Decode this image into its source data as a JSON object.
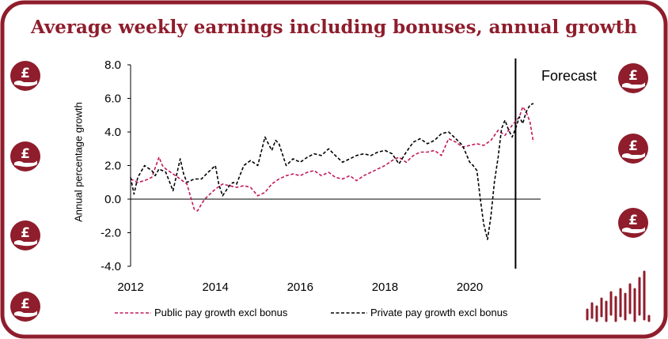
{
  "colors": {
    "accent": "#8f1d2c",
    "public_series": "#c2185b",
    "private_series": "#000000"
  },
  "title": "Average weekly earnings including bonuses, annual growth",
  "annotation": "Forecast",
  "icons": [
    "pound-hand-icon",
    "bars-logo-icon"
  ],
  "chart_data": {
    "type": "line",
    "title": "Average weekly earnings including bonuses, annual growth",
    "xlabel": "",
    "ylabel": "Annual percentage growth",
    "xlim": [
      2012,
      2021.67
    ],
    "ylim": [
      -4.0,
      8.0
    ],
    "x_ticks": [
      "2012",
      "2014",
      "2016",
      "2018",
      "2020"
    ],
    "y_ticks": [
      "8.0",
      "6.0",
      "4.0",
      "2.0",
      "0.0",
      "-2.0",
      "-4.0"
    ],
    "grid": false,
    "legend_position": "bottom",
    "forecast_start": 2021.08,
    "series": [
      {
        "name": "Public pay growth excl bonus",
        "x": [
          2012.0,
          2012.17,
          2012.33,
          2012.5,
          2012.67,
          2012.75,
          2012.83,
          2013.0,
          2013.17,
          2013.33,
          2013.5,
          2013.58,
          2013.67,
          2013.75,
          2013.83,
          2014.0,
          2014.17,
          2014.33,
          2014.5,
          2014.67,
          2014.83,
          2015.0,
          2015.17,
          2015.33,
          2015.5,
          2015.67,
          2015.83,
          2016.0,
          2016.17,
          2016.33,
          2016.5,
          2016.67,
          2016.83,
          2017.0,
          2017.17,
          2017.33,
          2017.5,
          2017.67,
          2017.83,
          2018.0,
          2018.17,
          2018.33,
          2018.5,
          2018.67,
          2018.83,
          2019.0,
          2019.17,
          2019.33,
          2019.5,
          2019.67,
          2019.83,
          2020.0,
          2020.17,
          2020.33,
          2020.5,
          2020.67,
          2020.83,
          2021.0,
          2021.17,
          2021.25,
          2021.33,
          2021.42,
          2021.5
        ],
        "y": [
          1.2,
          1.0,
          1.1,
          1.3,
          2.5,
          2.0,
          1.8,
          1.5,
          1.2,
          0.9,
          -0.6,
          -0.7,
          -0.3,
          0.0,
          0.2,
          0.6,
          0.9,
          0.8,
          0.7,
          0.8,
          0.7,
          0.2,
          0.4,
          0.9,
          1.2,
          1.4,
          1.5,
          1.4,
          1.6,
          1.7,
          1.4,
          1.6,
          1.3,
          1.2,
          1.4,
          1.1,
          1.4,
          1.6,
          1.8,
          2.0,
          2.3,
          2.5,
          2.2,
          2.6,
          2.8,
          2.8,
          2.9,
          2.6,
          3.6,
          3.4,
          3.1,
          3.2,
          3.3,
          3.2,
          3.5,
          4.1,
          3.8,
          4.4,
          4.9,
          5.5,
          5.2,
          4.6,
          3.4
        ]
      },
      {
        "name": "Private pay growth excl bonus",
        "x": [
          2012.0,
          2012.08,
          2012.17,
          2012.33,
          2012.5,
          2012.58,
          2012.67,
          2012.83,
          2013.0,
          2013.17,
          2013.25,
          2013.33,
          2013.5,
          2013.67,
          2013.83,
          2014.0,
          2014.08,
          2014.17,
          2014.33,
          2014.42,
          2014.5,
          2014.67,
          2014.83,
          2015.0,
          2015.17,
          2015.33,
          2015.42,
          2015.5,
          2015.67,
          2015.83,
          2016.0,
          2016.17,
          2016.33,
          2016.5,
          2016.67,
          2016.83,
          2017.0,
          2017.17,
          2017.33,
          2017.5,
          2017.67,
          2017.83,
          2018.0,
          2018.17,
          2018.33,
          2018.5,
          2018.67,
          2018.83,
          2019.0,
          2019.17,
          2019.33,
          2019.5,
          2019.67,
          2019.83,
          2020.0,
          2020.08,
          2020.17,
          2020.25,
          2020.33,
          2020.42,
          2020.5,
          2020.58,
          2020.67,
          2020.75,
          2020.83,
          2020.92,
          2021.0,
          2021.08,
          2021.17,
          2021.25,
          2021.33,
          2021.42,
          2021.5
        ],
        "y": [
          1.3,
          0.3,
          1.3,
          2.0,
          1.7,
          1.4,
          1.8,
          1.6,
          0.5,
          2.4,
          1.5,
          1.0,
          1.2,
          1.2,
          1.6,
          2.0,
          0.9,
          0.2,
          0.8,
          1.0,
          0.9,
          2.0,
          2.3,
          2.0,
          3.7,
          2.9,
          3.5,
          3.3,
          2.0,
          2.4,
          2.2,
          2.5,
          2.7,
          2.6,
          3.0,
          2.6,
          2.2,
          2.4,
          2.6,
          2.7,
          2.6,
          2.8,
          2.9,
          2.7,
          2.1,
          2.8,
          3.4,
          3.6,
          3.3,
          3.5,
          3.9,
          4.0,
          3.6,
          3.2,
          2.2,
          2.0,
          1.7,
          0.0,
          -1.5,
          -2.4,
          -1.0,
          1.0,
          2.5,
          4.2,
          4.7,
          4.1,
          3.7,
          4.2,
          4.9,
          4.5,
          5.2,
          5.6,
          5.7
        ]
      }
    ]
  }
}
